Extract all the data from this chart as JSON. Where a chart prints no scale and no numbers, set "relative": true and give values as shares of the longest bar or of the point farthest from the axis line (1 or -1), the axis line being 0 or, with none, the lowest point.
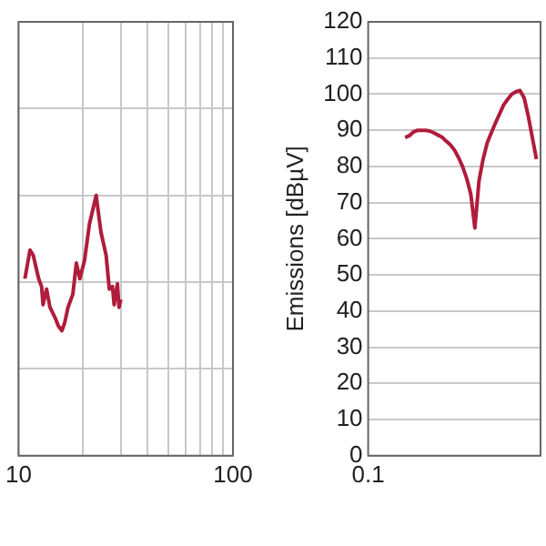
{
  "chart_data": [
    {
      "type": "line",
      "relative": true,
      "log": "x",
      "grid": true,
      "tick_labels": "x",
      "xlim": [
        10,
        100
      ],
      "xticks": [
        10,
        {
          "value": 20,
          "label": null
        },
        {
          "value": 30,
          "label": null
        },
        {
          "value": 40,
          "label": null
        },
        {
          "value": 50,
          "label": null
        },
        {
          "value": 60,
          "label": null
        },
        {
          "value": 70,
          "label": null
        },
        {
          "value": 80,
          "label": null
        },
        {
          "value": 90,
          "label": null
        },
        100
      ],
      "x": [
        10.7,
        11.3,
        11.7,
        12.4,
        12.8,
        13.0,
        13.5,
        14.0,
        14.8,
        15.3,
        15.9,
        16.4,
        17.0,
        17.9,
        18.6,
        19.3,
        20.3,
        21.4,
        23.0,
        24.2,
        25.6,
        26.5,
        27.4,
        27.9,
        28.9,
        29.4,
        30.0
      ],
      "series": [
        {
          "color": "#b01c3c",
          "values": [
            0.68,
            0.79,
            0.77,
            0.68,
            0.65,
            0.58,
            0.64,
            0.57,
            0.53,
            0.5,
            0.48,
            0.51,
            0.57,
            0.62,
            0.74,
            0.68,
            0.75,
            0.89,
            1.0,
            0.86,
            0.77,
            0.64,
            0.65,
            0.58,
            0.66,
            0.57,
            0.6
          ]
        }
      ]
    },
    {
      "type": "line",
      "grid": "y",
      "ylabel": "Emissions [dBµV]",
      "ylim": [
        0,
        120
      ],
      "yticks": [
        0,
        10,
        20,
        30,
        40,
        50,
        60,
        70,
        80,
        90,
        100,
        110,
        120
      ],
      "categories": [
        "0.1",
        null,
        null,
        null,
        null,
        null,
        null,
        null,
        null,
        null,
        null,
        null,
        null,
        null,
        null,
        null,
        null,
        null,
        null,
        null,
        null,
        null,
        null,
        null,
        null,
        null,
        null,
        null,
        null,
        null,
        null,
        null,
        null,
        null,
        null,
        null,
        null,
        null,
        null,
        null,
        null,
        null,
        null
      ],
      "series": [
        {
          "color": "#b01c3c",
          "values": [
            null,
            null,
            null,
            null,
            null,
            null,
            null,
            null,
            null,
            88,
            88.5,
            89.5,
            90,
            90,
            90,
            89.8,
            89.3,
            88.7,
            88.1,
            87,
            86,
            84.6,
            82.5,
            80,
            76.7,
            72.4,
            63,
            76,
            82,
            86.5,
            89.3,
            92,
            94.5,
            97,
            98.6,
            100,
            100.7,
            101,
            99,
            94,
            88,
            82,
            null
          ]
        }
      ]
    }
  ]
}
